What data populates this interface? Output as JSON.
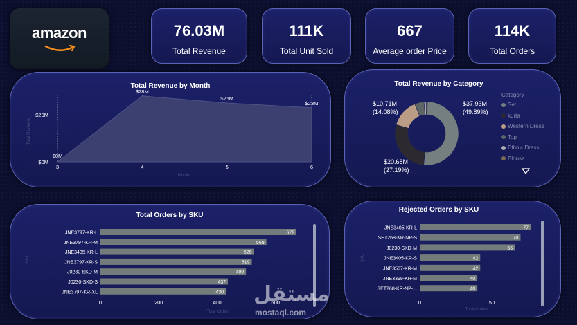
{
  "brand": {
    "logo_text": "amazon"
  },
  "kpis": [
    {
      "value": "76.03M",
      "label": "Total Revenue"
    },
    {
      "value": "111K",
      "label": "Total Unit Sold"
    },
    {
      "value": "667",
      "label": "Average order Price"
    },
    {
      "value": "114K",
      "label": "Total Orders"
    }
  ],
  "colors": {
    "panel": "#1a1f66",
    "bar": "#737b7b",
    "area": "#3b4070",
    "accent_border": "#5a63b8"
  },
  "chart_data": [
    {
      "id": "revenue_by_month",
      "type": "area",
      "title": "Total Revenue by Month",
      "xlabel": "Month",
      "ylabel": "Total Revenue",
      "x": [
        3,
        4,
        5,
        6
      ],
      "values": [
        0,
        28,
        25,
        23
      ],
      "data_labels": [
        "$0M",
        "$28M",
        "$25M",
        "$23M"
      ],
      "yticks": [
        {
          "value": 0,
          "label": "$0M"
        },
        {
          "value": 20,
          "label": "$20M"
        }
      ],
      "xticks": [
        "3",
        "4",
        "5",
        "6"
      ],
      "ylim": [
        0,
        30
      ],
      "xlim": [
        3,
        6
      ]
    },
    {
      "id": "revenue_by_category",
      "type": "pie",
      "title": "Total Revenue by Category",
      "legend_title": "Category",
      "categories": [
        "Set",
        "kurta",
        "Western Dress",
        "Top",
        "Ethnic Dress",
        "Blouse"
      ],
      "values": [
        37.93,
        20.68,
        10.71,
        3.5,
        0.8,
        0.45
      ],
      "colors": [
        "#767f7f",
        "#2d2a2f",
        "#bb9c84",
        "#5d6565",
        "#a9aab2",
        "#7a6a52"
      ],
      "data_labels": [
        {
          "value": "$37.93M",
          "pct": "(49.89%)"
        },
        {
          "value": "$20.68M",
          "pct": "(27.19%)"
        },
        {
          "value": "$10.71M",
          "pct": "(14.08%)"
        }
      ]
    },
    {
      "id": "orders_by_sku",
      "type": "bar",
      "orientation": "horizontal",
      "title": "Total Orders by SKU",
      "xlabel": "Total Orders",
      "ylabel": "SKU",
      "categories": [
        "JNE3797-KR-L",
        "JNE3797-KR-M",
        "JNE3405-KR-L",
        "JNE3797-KR-S",
        "J0230-SKD-M",
        "J0230-SKD-S",
        "JNE3797-KR-XL"
      ],
      "values": [
        672,
        569,
        526,
        519,
        499,
        437,
        430
      ],
      "xticks": [
        0,
        200,
        400,
        600
      ],
      "xlim": [
        0,
        672
      ]
    },
    {
      "id": "rejected_by_sku",
      "type": "bar",
      "orientation": "horizontal",
      "title": "Rejected Orders by SKU",
      "xlabel": "Total Orders",
      "ylabel": "SKU",
      "categories": [
        "JNE3405-KR-L",
        "SET268-KR-NP-S",
        "J0230-SKD-M",
        "JNE3405-KR-S",
        "JNE3567-KR-M",
        "JNE3399-KR-M",
        "SET268-KR-NP-..."
      ],
      "values": [
        77,
        70,
        66,
        42,
        42,
        40,
        40
      ],
      "xticks": [
        0,
        50
      ],
      "xlim": [
        0,
        77
      ]
    }
  ],
  "watermark": {
    "arabic": "مستقل",
    "latin": "mostaql.com"
  }
}
